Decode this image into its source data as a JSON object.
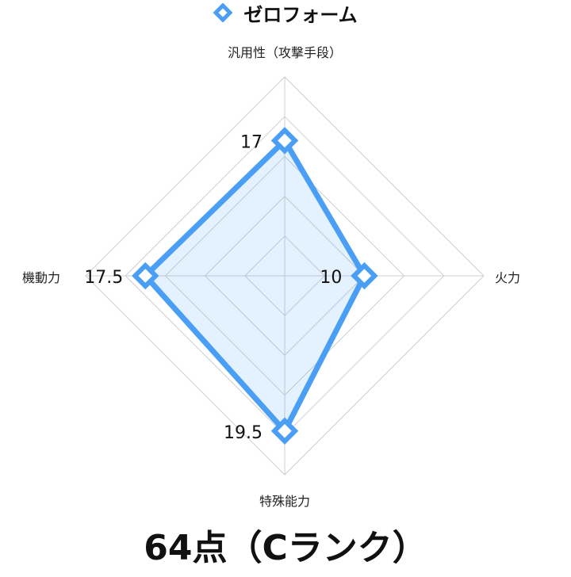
{
  "chart_data": {
    "type": "radar",
    "axes": [
      "汎用性（攻撃手段）",
      "火力",
      "特殊能力",
      "機動力"
    ],
    "series": [
      {
        "name": "ゼロフォーム",
        "values": [
          17,
          10,
          19.5,
          17.5
        ],
        "color": "#4a9ff5"
      }
    ],
    "data_labels": [
      "17",
      "10",
      "19.5",
      "17.5"
    ],
    "rlim": [
      0,
      25
    ],
    "grid_levels": [
      5,
      10,
      15,
      20,
      25
    ],
    "grid": true,
    "legend_position": "top"
  },
  "score_text": "64点（Cランク）"
}
